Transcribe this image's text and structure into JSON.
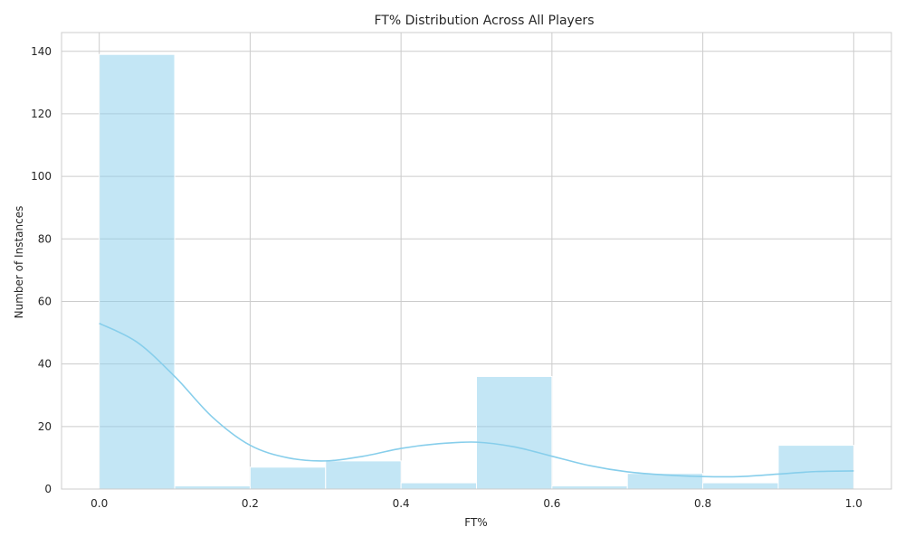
{
  "chart_data": {
    "type": "bar",
    "subtype": "histogram-with-kde",
    "title": "FT% Distribution Across All Players",
    "xlabel": "FT%",
    "ylabel": "Number of Instances",
    "xlim": [
      -0.05,
      1.05
    ],
    "ylim": [
      0,
      146
    ],
    "xticks": [
      0.0,
      0.2,
      0.4,
      0.6,
      0.8,
      1.0
    ],
    "xtick_labels": [
      "0.0",
      "0.2",
      "0.4",
      "0.6",
      "0.8",
      "1.0"
    ],
    "yticks": [
      0,
      20,
      40,
      60,
      80,
      100,
      120,
      140
    ],
    "ytick_labels": [
      "0",
      "20",
      "40",
      "60",
      "80",
      "100",
      "120",
      "140"
    ],
    "grid": true,
    "bins": [
      {
        "start": 0.0,
        "end": 0.1,
        "count": 139
      },
      {
        "start": 0.1,
        "end": 0.2,
        "count": 1
      },
      {
        "start": 0.2,
        "end": 0.3,
        "count": 7
      },
      {
        "start": 0.3,
        "end": 0.4,
        "count": 9
      },
      {
        "start": 0.4,
        "end": 0.5,
        "count": 2
      },
      {
        "start": 0.5,
        "end": 0.6,
        "count": 36
      },
      {
        "start": 0.6,
        "end": 0.7,
        "count": 1
      },
      {
        "start": 0.7,
        "end": 0.8,
        "count": 5
      },
      {
        "start": 0.8,
        "end": 0.9,
        "count": 2
      },
      {
        "start": 0.9,
        "end": 1.0,
        "count": 14
      }
    ],
    "kde": {
      "x": [
        0.0,
        0.05,
        0.1,
        0.15,
        0.2,
        0.25,
        0.3,
        0.35,
        0.4,
        0.45,
        0.5,
        0.55,
        0.6,
        0.65,
        0.7,
        0.75,
        0.8,
        0.85,
        0.9,
        0.95,
        1.0
      ],
      "y": [
        53,
        47,
        36,
        23,
        14,
        10,
        9,
        10.5,
        13,
        14.5,
        15,
        13.5,
        10.5,
        7.5,
        5.5,
        4.5,
        4,
        4,
        4.8,
        5.6,
        5.8
      ]
    },
    "bar_color": "#87ceeb",
    "bar_opacity": 0.5,
    "kde_color": "#87ceeb",
    "grid_color": "#cccccc"
  }
}
